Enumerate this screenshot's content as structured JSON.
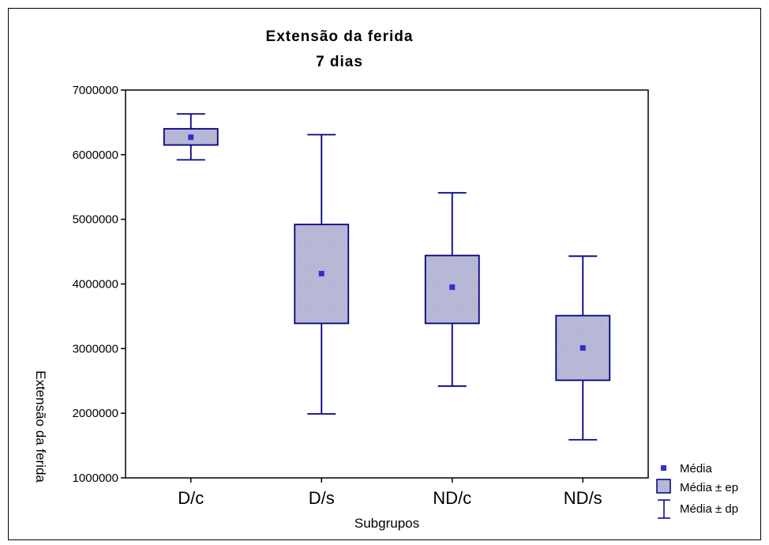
{
  "chart_data": {
    "type": "box",
    "title": "Extensão da ferida",
    "subtitle": "7 dias",
    "xlabel": "Subgrupos",
    "ylabel": "Extensão da ferida",
    "ylim": [
      1000000,
      7000000
    ],
    "yticks": [
      1000000,
      2000000,
      3000000,
      4000000,
      5000000,
      6000000,
      7000000
    ],
    "ytick_labels": [
      "1000000",
      "2000000",
      "3000000",
      "4000000",
      "5000000",
      "6000000",
      "7000000"
    ],
    "categories": [
      "D/c",
      "D/s",
      "ND/c",
      "ND/s"
    ],
    "series": [
      {
        "category": "D/c",
        "mean": 6270000,
        "se_low": 6150000,
        "se_high": 6400000,
        "sd_low": 5920000,
        "sd_high": 6630000
      },
      {
        "category": "D/s",
        "mean": 4160000,
        "se_low": 3390000,
        "se_high": 4920000,
        "sd_low": 1990000,
        "sd_high": 6310000
      },
      {
        "category": "ND/c",
        "mean": 3950000,
        "se_low": 3390000,
        "se_high": 4440000,
        "sd_low": 2420000,
        "sd_high": 5410000
      },
      {
        "category": "ND/s",
        "mean": 3010000,
        "se_low": 2510000,
        "se_high": 3510000,
        "sd_low": 1590000,
        "sd_high": 4430000
      }
    ],
    "legend": {
      "position": "bottom-right",
      "items": [
        "Média",
        "Média ± ep",
        "Média ± dp"
      ]
    },
    "colors": {
      "line": "#000080",
      "fill": "#c8c8e0",
      "marker": "#3030d0"
    },
    "grid": false
  }
}
